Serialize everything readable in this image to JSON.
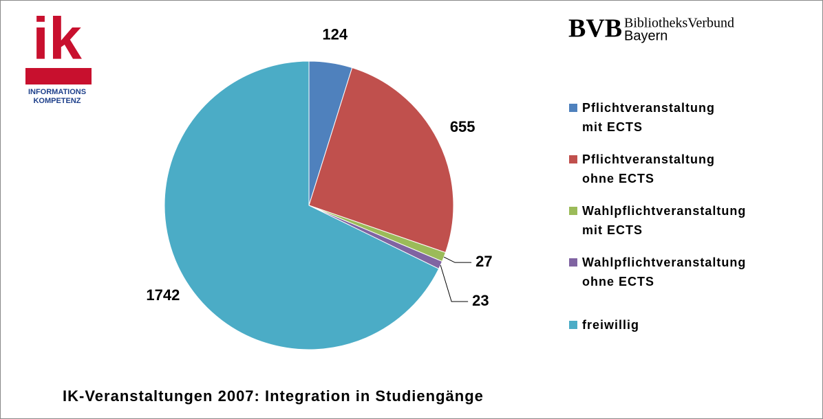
{
  "logos": {
    "ik": "ik",
    "ik_line1": "INFORMATIONS",
    "ik_line2": "KOMPETENZ",
    "bvb": "BVB",
    "bvb_line1": "BibliotheksVerbund",
    "bvb_line2": "Bayern"
  },
  "chart_data": {
    "type": "pie",
    "title": "IK-Veranstaltungen 2007: Integration in Studiengänge",
    "categories": [
      "Pflichtveranstaltung mit ECTS",
      "Pflichtveranstaltung ohne ECTS",
      "Wahlpflichtveranstaltung mit ECTS",
      "Wahlpflichtveranstaltung ohne ECTS",
      "freiwillig"
    ],
    "values": [
      124,
      655,
      27,
      23,
      1742
    ],
    "colors": [
      "#4f81bd",
      "#c0504d",
      "#9bbb59",
      "#8064a2",
      "#4bacc6"
    ],
    "legend": "right"
  }
}
